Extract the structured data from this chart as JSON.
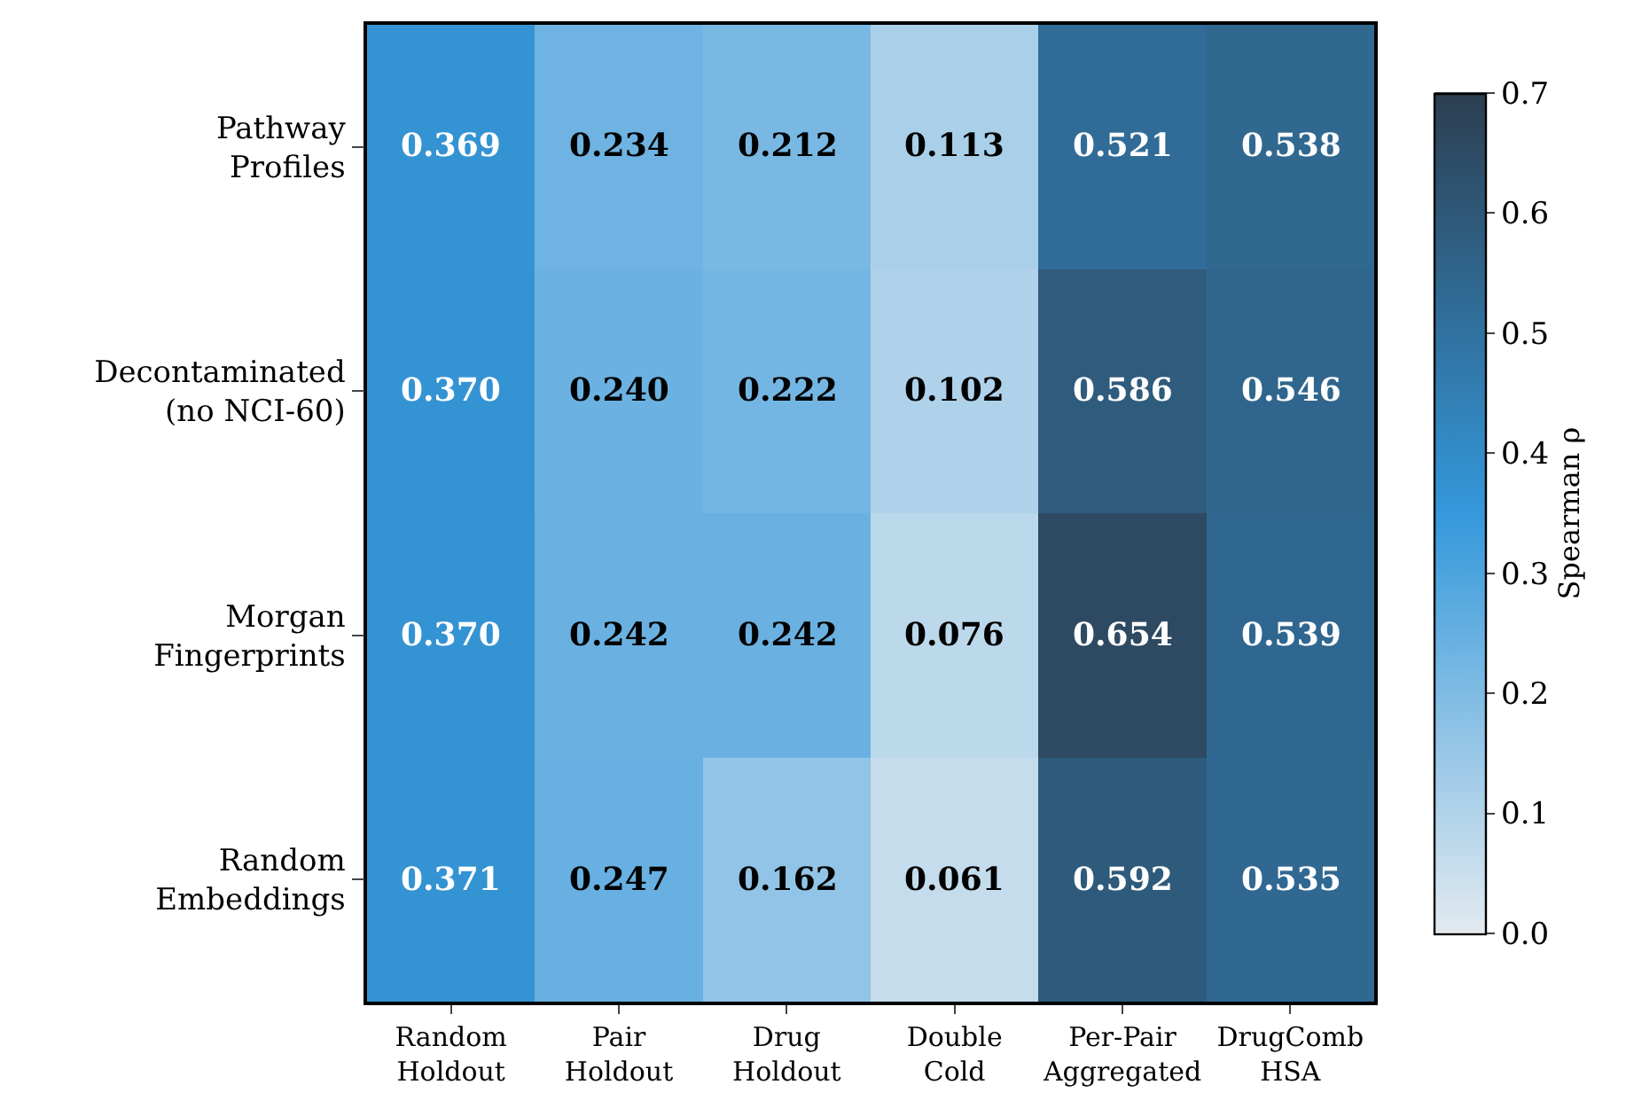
{
  "chart_data": {
    "type": "heatmap",
    "categories": [
      "Random\nHoldout",
      "Pair\nHoldout",
      "Drug\nHoldout",
      "Double\nCold",
      "Per-Pair\nAggregated",
      "DrugComb\nHSA"
    ],
    "y_categories": [
      "Pathway\nProfiles",
      "Decontaminated\n(no NCI-60)",
      "Morgan\nFingerprints",
      "Random\nEmbeddings"
    ],
    "cells": [
      [
        0.369,
        0.234,
        0.212,
        0.113,
        0.521,
        0.538
      ],
      [
        0.37,
        0.24,
        0.222,
        0.102,
        0.586,
        0.546
      ],
      [
        0.37,
        0.242,
        0.242,
        0.076,
        0.654,
        0.539
      ],
      [
        0.371,
        0.247,
        0.162,
        0.061,
        0.592,
        0.535
      ]
    ],
    "cell_labels": [
      [
        "0.369",
        "0.234",
        "0.212",
        "0.113",
        "0.521",
        "0.538"
      ],
      [
        "0.370",
        "0.240",
        "0.222",
        "0.102",
        "0.586",
        "0.546"
      ],
      [
        "0.370",
        "0.242",
        "0.242",
        "0.076",
        "0.654",
        "0.539"
      ],
      [
        "0.371",
        "0.247",
        "0.162",
        "0.061",
        "0.592",
        "0.535"
      ]
    ],
    "data_labels": true,
    "clabel": "Spearman ρ",
    "clim": [
      0.0,
      0.7
    ],
    "cticks": [
      {
        "value": 0,
        "label": "0.0"
      },
      0.1,
      0.2,
      0.3,
      0.4,
      0.5,
      0.6,
      0.7
    ]
  }
}
